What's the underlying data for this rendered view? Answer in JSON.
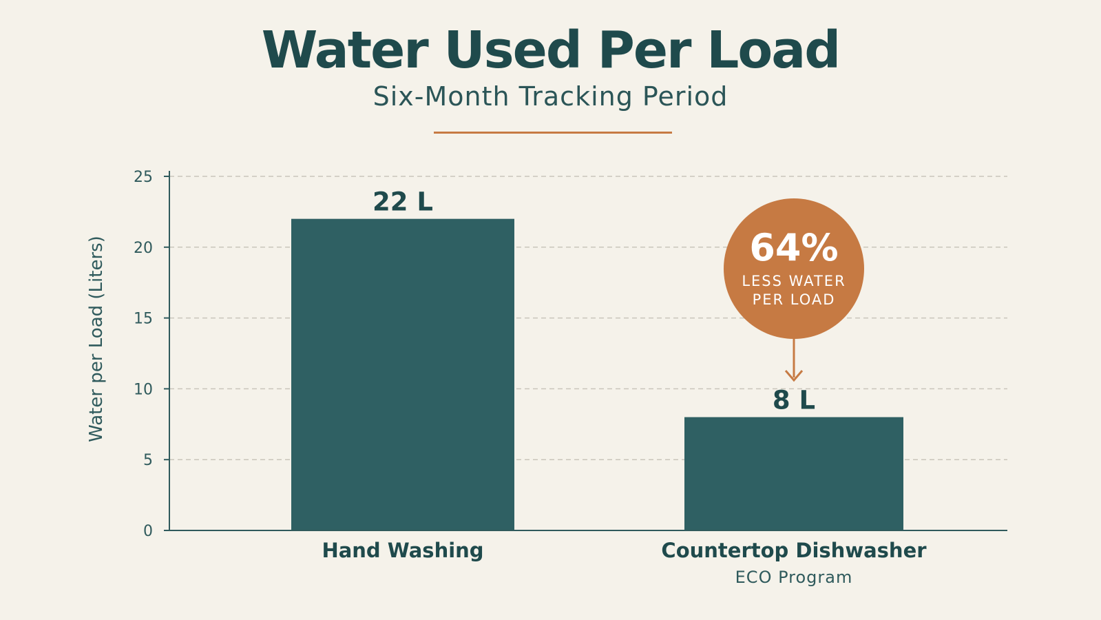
{
  "header": {
    "title": "Water Used Per Load",
    "subtitle": "Six-Month Tracking Period"
  },
  "colors": {
    "bar": "#2f6063",
    "accent": "#c67a43",
    "text": "#1f4a4c",
    "background": "#f5f2ea"
  },
  "callout": {
    "percent": "64%",
    "line1": "LESS WATER",
    "line2": "PER LOAD"
  },
  "chart_data": {
    "type": "bar",
    "ylabel": "Water per Load (Liters)",
    "xlabel": "",
    "ylim": [
      0,
      25
    ],
    "yticks": [
      0,
      5,
      10,
      15,
      20,
      25
    ],
    "grid": true,
    "categories": [
      "Hand Washing",
      "Countertop Dishwasher"
    ],
    "category_sublabels": [
      "",
      "ECO Program"
    ],
    "values": [
      22,
      8
    ],
    "value_labels": [
      "22 L",
      "8 L"
    ]
  }
}
